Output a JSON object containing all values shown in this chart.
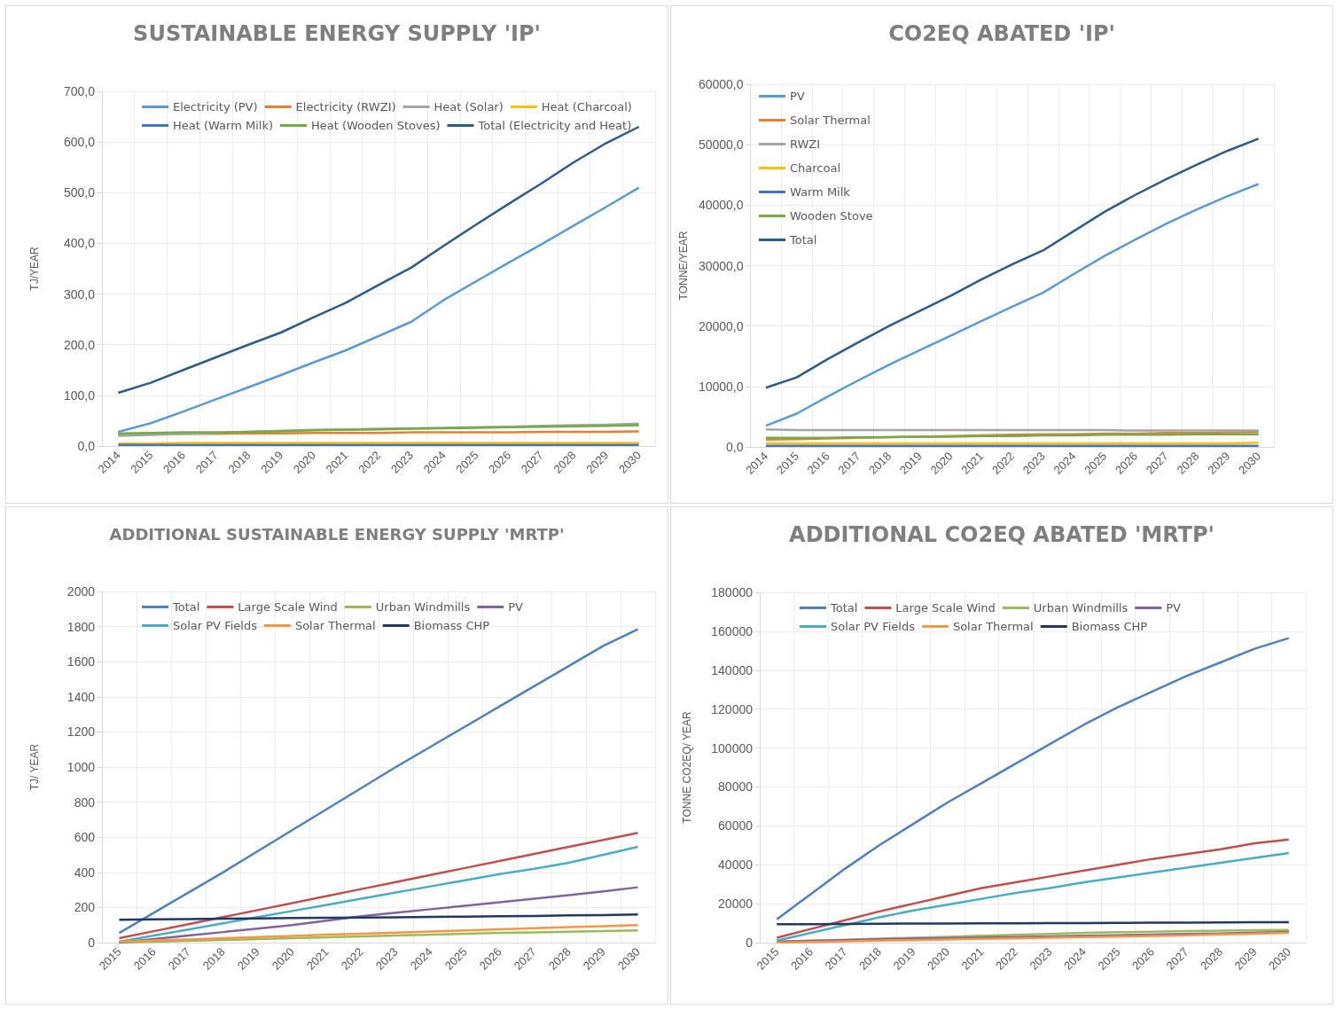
{
  "chart_data": [
    {
      "type": "line",
      "title": "SUSTAINABLE ENERGY SUPPLY 'IP'",
      "ylabel": "TJ/YEAR",
      "legend": "top",
      "grid": true,
      "marker": "none",
      "line_style": "solid",
      "categories": [
        "2014",
        "2015",
        "2016",
        "2017",
        "2018",
        "2019",
        "2020",
        "2021",
        "2022",
        "2023",
        "2024",
        "2025",
        "2026",
        "2027",
        "2028",
        "2029",
        "2030"
      ],
      "ylim": [
        0,
        700
      ],
      "yticks": [
        {
          "value": 0,
          "label": "0,0"
        },
        {
          "value": 100,
          "label": "100,0"
        },
        {
          "value": 200,
          "label": "200,0"
        },
        {
          "value": 300,
          "label": "300,0"
        },
        {
          "value": 400,
          "label": "400,0"
        },
        {
          "value": 500,
          "label": "500,0"
        },
        {
          "value": 600,
          "label": "600,0"
        },
        {
          "value": 700,
          "label": "700,0"
        }
      ],
      "series": [
        {
          "name": "Electricity (PV)",
          "color": "#5b9bd5",
          "values": [
            28,
            45,
            68,
            92,
            116,
            140,
            165,
            189,
            217,
            245,
            288,
            325,
            362,
            398,
            435,
            472,
            510
          ]
        },
        {
          "name": "Electricity (RWZI)",
          "color": "#ed7d31",
          "values": [
            22,
            23,
            24,
            24,
            25,
            25,
            26,
            26,
            26,
            27,
            27,
            27,
            27,
            28,
            28,
            28,
            29
          ]
        },
        {
          "name": "Heat (Solar)",
          "color": "#a5a5a5",
          "values": [
            20,
            22,
            24,
            26,
            28,
            30,
            32,
            33,
            34,
            35,
            36,
            37,
            38,
            40,
            41,
            42,
            44
          ]
        },
        {
          "name": "Heat (Charcoal)",
          "color": "#ffc000",
          "values": [
            5,
            5,
            6,
            6,
            6,
            6,
            6,
            6,
            6,
            6,
            6,
            6,
            6,
            6,
            6,
            6,
            6
          ]
        },
        {
          "name": "Heat (Warm Milk)",
          "color": "#4472c4",
          "values": [
            2,
            2,
            2,
            2,
            2,
            2,
            2,
            2,
            2,
            2,
            2,
            2,
            2,
            2,
            2,
            2,
            2
          ]
        },
        {
          "name": "Heat (Wooden Stoves)",
          "color": "#70ad47",
          "values": [
            25,
            26,
            27,
            27,
            28,
            29,
            31,
            32,
            33,
            34,
            35,
            36,
            37,
            38,
            39,
            40,
            41
          ]
        },
        {
          "name": "Total (Electricity and Heat)",
          "color": "#2e5c8a",
          "values": [
            105,
            125,
            150,
            175,
            200,
            224,
            254,
            283,
            318,
            352,
            395,
            437,
            478,
            518,
            560,
            598,
            630
          ]
        }
      ]
    },
    {
      "type": "line",
      "title": "CO2EQ ABATED 'IP'",
      "ylabel": "TONNE/YEAR",
      "legend": "top left",
      "grid": true,
      "marker": "none",
      "line_style": "solid",
      "categories": [
        "2014",
        "2015",
        "2016",
        "2017",
        "2018",
        "2019",
        "2020",
        "2021",
        "2022",
        "2023",
        "2024",
        "2025",
        "2026",
        "2027",
        "2028",
        "2029",
        "2030"
      ],
      "ylim": [
        0,
        60000
      ],
      "yticks": [
        {
          "value": 0,
          "label": "0,0"
        },
        {
          "value": 10000,
          "label": "10000,0"
        },
        {
          "value": 20000,
          "label": "20000,0"
        },
        {
          "value": 30000,
          "label": "30000,0"
        },
        {
          "value": 40000,
          "label": "40000,0"
        },
        {
          "value": 50000,
          "label": "50000,0"
        },
        {
          "value": 60000,
          "label": "60000,0"
        }
      ],
      "series": [
        {
          "name": "PV",
          "color": "#5b9bd5",
          "values": [
            3500,
            5500,
            8300,
            11000,
            13600,
            16000,
            18400,
            20800,
            23200,
            25500,
            28600,
            31600,
            34300,
            36900,
            39300,
            41500,
            43500
          ]
        },
        {
          "name": "Solar Thermal",
          "color": "#ed7d31",
          "values": [
            1200,
            1300,
            1400,
            1500,
            1600,
            1700,
            1800,
            1900,
            2000,
            2100,
            2100,
            2200,
            2200,
            2300,
            2300,
            2400,
            2500
          ]
        },
        {
          "name": "RWZI",
          "color": "#a5a5a5",
          "values": [
            2900,
            2800,
            2800,
            2800,
            2800,
            2800,
            2800,
            2800,
            2800,
            2800,
            2800,
            2800,
            2700,
            2700,
            2700,
            2700,
            2700
          ]
        },
        {
          "name": "Charcoal",
          "color": "#ffc000",
          "values": [
            600,
            600,
            600,
            600,
            600,
            600,
            600,
            600,
            600,
            600,
            600,
            600,
            600,
            600,
            600,
            600,
            700
          ]
        },
        {
          "name": "Warm Milk",
          "color": "#4472c4",
          "values": [
            200,
            200,
            200,
            200,
            200,
            200,
            200,
            200,
            200,
            200,
            200,
            200,
            200,
            200,
            200,
            200,
            200
          ]
        },
        {
          "name": "Wooden Stove",
          "color": "#70ad47",
          "values": [
            1500,
            1500,
            1500,
            1600,
            1600,
            1700,
            1700,
            1800,
            1800,
            1900,
            1900,
            2000,
            2000,
            2000,
            2100,
            2100,
            2100
          ]
        },
        {
          "name": "Total",
          "color": "#2e5c8a",
          "values": [
            9800,
            11500,
            14500,
            17300,
            20000,
            22500,
            25000,
            27700,
            30200,
            32500,
            35700,
            38900,
            41700,
            44300,
            46700,
            49000,
            51000
          ]
        }
      ]
    },
    {
      "type": "line",
      "title": "ADDITIONAL SUSTAINABLE ENERGY SUPPLY 'MRTP'",
      "ylabel": "TJ/ YEAR",
      "legend": "top",
      "grid": true,
      "marker": "none",
      "line_style": "solid",
      "categories": [
        "2015",
        "2016",
        "2017",
        "2018",
        "2019",
        "2020",
        "2021",
        "2022",
        "2023",
        "2024",
        "2025",
        "2026",
        "2027",
        "2028",
        "2029",
        "2030"
      ],
      "ylim": [
        0,
        2000
      ],
      "yticks": [
        0,
        200,
        400,
        600,
        800,
        1000,
        1200,
        1400,
        1600,
        1800,
        2000
      ],
      "series": [
        {
          "name": "Total",
          "color": "#4f81bd",
          "values": [
            55,
            170,
            285,
            400,
            520,
            640,
            760,
            880,
            1000,
            1115,
            1230,
            1345,
            1460,
            1575,
            1690,
            1785
          ]
        },
        {
          "name": "Large Scale Wind",
          "color": "#c0504d",
          "values": [
            25,
            65,
            105,
            145,
            185,
            225,
            265,
            305,
            345,
            385,
            425,
            465,
            505,
            545,
            585,
            625
          ]
        },
        {
          "name": "Urban Windmills",
          "color": "#9bbb59",
          "values": [
            0,
            5,
            10,
            15,
            20,
            25,
            30,
            35,
            40,
            45,
            50,
            55,
            58,
            62,
            66,
            70
          ]
        },
        {
          "name": "PV",
          "color": "#8064a2",
          "values": [
            0,
            20,
            40,
            60,
            80,
            100,
            125,
            150,
            170,
            190,
            210,
            230,
            250,
            270,
            292,
            315
          ]
        },
        {
          "name": "Solar PV Fields",
          "color": "#4bacc6",
          "values": [
            5,
            40,
            75,
            110,
            145,
            180,
            215,
            250,
            285,
            320,
            355,
            390,
            420,
            455,
            500,
            545
          ]
        },
        {
          "name": "Solar Thermal",
          "color": "#f79646",
          "values": [
            5,
            12,
            18,
            25,
            32,
            38,
            45,
            50,
            57,
            63,
            70,
            76,
            82,
            88,
            94,
            100
          ]
        },
        {
          "name": "Biomass CHP",
          "color": "#1f3864",
          "values": [
            130,
            132,
            134,
            136,
            138,
            140,
            142,
            143,
            144,
            146,
            148,
            150,
            152,
            155,
            157,
            160
          ]
        }
      ]
    },
    {
      "type": "line",
      "title": "ADDITIONAL CO2EQ ABATED 'MRTP'",
      "ylabel": "TONNE CO2EQ/ YEAR",
      "legend": "top",
      "grid": true,
      "marker": "none",
      "line_style": "solid",
      "categories": [
        "2015",
        "2016",
        "2017",
        "2018",
        "2019",
        "2020",
        "2021",
        "2022",
        "2023",
        "2024",
        "2025",
        "2026",
        "2027",
        "2028",
        "2029",
        "2030"
      ],
      "ylim": [
        0,
        180000
      ],
      "yticks": [
        0,
        20000,
        40000,
        60000,
        80000,
        100000,
        120000,
        140000,
        160000,
        180000
      ],
      "series": [
        {
          "name": "Total",
          "color": "#4f81bd",
          "values": [
            12000,
            25000,
            38000,
            50000,
            61000,
            72000,
            82000,
            92000,
            102000,
            112000,
            121000,
            129000,
            137000,
            144000,
            151000,
            156500
          ]
        },
        {
          "name": "Large Scale Wind",
          "color": "#c0504d",
          "values": [
            2500,
            7000,
            11500,
            16000,
            20000,
            24000,
            28000,
            31000,
            34000,
            37000,
            40000,
            43000,
            45500,
            48000,
            51000,
            53000
          ]
        },
        {
          "name": "Urban Windmills",
          "color": "#9bbb59",
          "values": [
            500,
            1000,
            1500,
            2000,
            2500,
            3000,
            3500,
            4000,
            4500,
            5000,
            5300,
            5600,
            5900,
            6200,
            6400,
            6500
          ]
        },
        {
          "name": "PV",
          "color": "#8064a2",
          "values": [
            500,
            900,
            1300,
            1700,
            2000,
            2300,
            2600,
            2900,
            3200,
            3500,
            3800,
            4100,
            4400,
            4700,
            5100,
            5500
          ]
        },
        {
          "name": "Solar PV Fields",
          "color": "#4bacc6",
          "values": [
            1000,
            5000,
            9000,
            13000,
            16500,
            19500,
            22500,
            25500,
            28000,
            31000,
            33500,
            36000,
            38500,
            41000,
            43500,
            46000
          ]
        },
        {
          "name": "Solar Thermal",
          "color": "#f79646",
          "values": [
            0,
            300,
            700,
            1000,
            1300,
            1600,
            1900,
            2200,
            2500,
            2800,
            3100,
            3400,
            3800,
            4200,
            4600,
            5000
          ]
        },
        {
          "name": "Biomass CHP",
          "color": "#1f3864",
          "values": [
            9500,
            9500,
            9600,
            9700,
            9800,
            9800,
            9900,
            9900,
            10000,
            10000,
            10100,
            10200,
            10300,
            10400,
            10500,
            10500
          ]
        }
      ]
    }
  ]
}
